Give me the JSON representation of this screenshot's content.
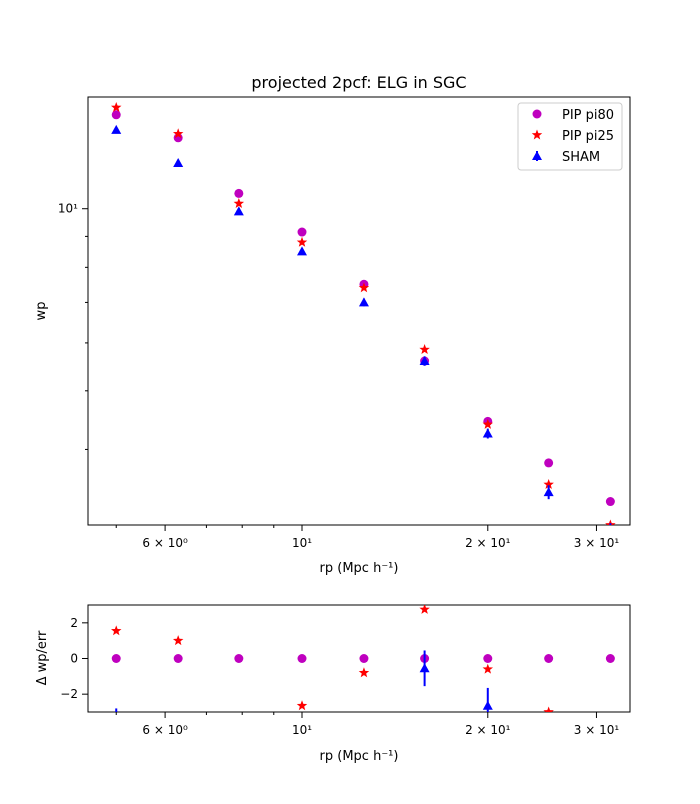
{
  "chart_data": [
    {
      "type": "scatter",
      "title": "projected 2pcf: ELG in SGC",
      "xlabel": "rp (Mpc h⁻¹)",
      "ylabel": "wp",
      "xscale": "log",
      "yscale": "log",
      "xlim": [
        4.5,
        34
      ],
      "ylim": [
        3.0,
        15.3
      ],
      "x": [
        5.0,
        6.3,
        7.9,
        10.0,
        12.6,
        15.8,
        20.0,
        25.1,
        31.6
      ],
      "x_ticks": [
        {
          "value": 6,
          "label": "6 × 10⁰"
        },
        {
          "value": 10,
          "label": "10¹"
        },
        {
          "value": 20,
          "label": "2 × 10¹"
        },
        {
          "value": 30,
          "label": "3 × 10¹"
        }
      ],
      "y_ticks": [
        {
          "value": 10,
          "label": "10¹"
        }
      ],
      "legend_position": "top-right",
      "series": [
        {
          "name": "PIP pi80",
          "marker": "circle",
          "color": "#bf00bf",
          "values": [
            14.3,
            13.1,
            10.6,
            9.15,
            7.5,
            5.6,
            4.45,
            3.8,
            3.28
          ]
        },
        {
          "name": "PIP pi25",
          "marker": "star",
          "color": "#ff0000",
          "values": [
            14.7,
            13.3,
            10.2,
            8.8,
            7.4,
            5.85,
            4.4,
            3.5,
            3.0
          ]
        },
        {
          "name": "SHAM",
          "marker": "triangle",
          "color": "#0000ff",
          "values": [
            13.5,
            11.9,
            9.9,
            8.5,
            7.0,
            5.6,
            4.25,
            3.4,
            2.93
          ],
          "errors": [
            0.15,
            0.15,
            0.12,
            0.1,
            0.1,
            0.1,
            0.08,
            0.09,
            0.09
          ]
        }
      ]
    },
    {
      "type": "scatter",
      "xlabel": "rp (Mpc h⁻¹)",
      "ylabel": "Δ wp/err",
      "xscale": "log",
      "xlim": [
        4.5,
        34
      ],
      "ylim": [
        -3.0,
        3.0
      ],
      "x": [
        5.0,
        6.3,
        7.9,
        10.0,
        12.6,
        15.8,
        20.0,
        25.1,
        31.6
      ],
      "x_ticks": [
        {
          "value": 6,
          "label": "6 × 10⁰"
        },
        {
          "value": 10,
          "label": "10¹"
        },
        {
          "value": 20,
          "label": "2 × 10¹"
        },
        {
          "value": 30,
          "label": "3 × 10¹"
        }
      ],
      "y_ticks": [
        {
          "value": 2,
          "label": "2"
        },
        {
          "value": 0,
          "label": "0"
        },
        {
          "value": -2,
          "label": "−2"
        }
      ],
      "series": [
        {
          "name": "PIP pi80",
          "marker": "circle",
          "color": "#bf00bf",
          "values": [
            0,
            0,
            0,
            0,
            0,
            0,
            0,
            0,
            0
          ]
        },
        {
          "name": "PIP pi25",
          "marker": "star",
          "color": "#ff0000",
          "values": [
            1.55,
            1.0,
            null,
            -2.65,
            -0.8,
            2.75,
            -0.6,
            -3.0,
            null
          ]
        },
        {
          "name": "SHAM",
          "marker": "triangle",
          "color": "#0000ff",
          "values": [
            -3.4,
            null,
            null,
            null,
            null,
            -0.55,
            -2.65,
            null,
            null
          ],
          "errors": [
            0.6,
            null,
            null,
            null,
            null,
            1.0,
            1.0,
            null,
            null
          ]
        }
      ]
    }
  ]
}
